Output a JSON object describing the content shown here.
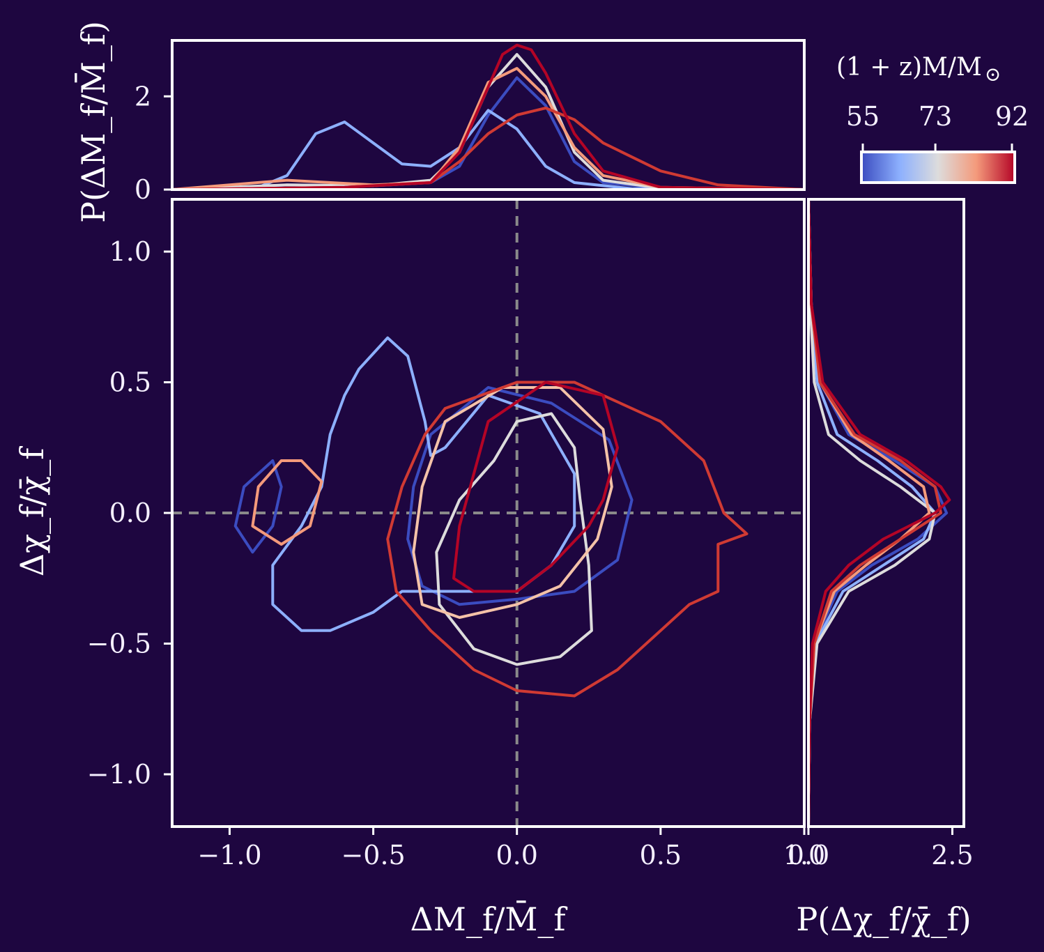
{
  "chart_data": {
    "type": "line",
    "subtype": "corner-plot with marginal distributions and 2D contours",
    "colorbar": {
      "title": "(1 + z)M/M",
      "title_symbol": "⊙",
      "tick_labels": [
        "55",
        "73",
        "92"
      ],
      "ticks": [
        55,
        73,
        92
      ],
      "range": [
        55,
        92
      ],
      "colormap": "coolwarm",
      "stops": [
        "#3b4cc0",
        "#8db0fe",
        "#dddcdc",
        "#f49a7b",
        "#b40426"
      ]
    },
    "main": {
      "xlabel": "ΔM_f/M̄_f",
      "ylabel": "Δχ_f/χ̄_f",
      "xlim": [
        -1.2,
        1.0
      ],
      "ylim": [
        -1.2,
        1.2
      ],
      "xticks": [
        -1.0,
        -0.5,
        0.0,
        0.5,
        1.0
      ],
      "xtick_labels": [
        "−1.0",
        "−0.5",
        "0.0",
        "0.5",
        "1.0"
      ],
      "yticks": [
        -1.0,
        -0.5,
        0.0,
        0.5,
        1.0
      ],
      "ytick_labels": [
        "−1.0",
        "−0.5",
        "0.0",
        "0.5",
        "1.0"
      ],
      "reference_lines": {
        "x": 0.0,
        "y": 0.0
      },
      "contours": [
        {
          "name": "M=55 outer",
          "color": "#3b4cc0",
          "points": [
            [
              -0.3,
              0.3
            ],
            [
              -0.1,
              0.48
            ],
            [
              0.12,
              0.42
            ],
            [
              0.32,
              0.28
            ],
            [
              0.4,
              0.05
            ],
            [
              0.35,
              -0.18
            ],
            [
              0.2,
              -0.3
            ],
            [
              0.0,
              -0.33
            ],
            [
              -0.2,
              -0.35
            ],
            [
              -0.33,
              -0.28
            ],
            [
              -0.38,
              -0.1
            ],
            [
              -0.36,
              0.1
            ],
            [
              -0.3,
              0.3
            ]
          ]
        },
        {
          "name": "M=55 secondary",
          "color": "#3b4cc0",
          "points": [
            [
              -0.85,
              0.2
            ],
            [
              -0.82,
              0.1
            ],
            [
              -0.85,
              -0.05
            ],
            [
              -0.92,
              -0.15
            ],
            [
              -0.98,
              -0.05
            ],
            [
              -0.95,
              0.1
            ],
            [
              -0.85,
              0.2
            ]
          ]
        },
        {
          "name": "M=62 outer",
          "color": "#8db0fe",
          "points": [
            [
              -0.55,
              0.55
            ],
            [
              -0.45,
              0.67
            ],
            [
              -0.38,
              0.6
            ],
            [
              -0.32,
              0.35
            ],
            [
              -0.3,
              0.22
            ],
            [
              -0.25,
              0.25
            ],
            [
              -0.1,
              0.45
            ],
            [
              0.08,
              0.38
            ],
            [
              0.2,
              0.15
            ],
            [
              0.2,
              -0.05
            ],
            [
              0.12,
              -0.2
            ],
            [
              0.0,
              -0.3
            ],
            [
              -0.15,
              -0.3
            ],
            [
              -0.3,
              -0.3
            ],
            [
              -0.4,
              -0.3
            ],
            [
              -0.5,
              -0.38
            ],
            [
              -0.65,
              -0.45
            ],
            [
              -0.75,
              -0.45
            ],
            [
              -0.85,
              -0.35
            ],
            [
              -0.85,
              -0.2
            ],
            [
              -0.75,
              -0.05
            ],
            [
              -0.68,
              0.1
            ],
            [
              -0.65,
              0.3
            ],
            [
              -0.6,
              0.45
            ],
            [
              -0.55,
              0.55
            ]
          ]
        },
        {
          "name": "M=73 outer",
          "color": "#dddcdc",
          "points": [
            [
              0.0,
              0.35
            ],
            [
              0.12,
              0.38
            ],
            [
              0.2,
              0.25
            ],
            [
              0.22,
              0.05
            ],
            [
              0.25,
              -0.2
            ],
            [
              0.26,
              -0.45
            ],
            [
              0.15,
              -0.55
            ],
            [
              0.0,
              -0.58
            ],
            [
              -0.15,
              -0.52
            ],
            [
              -0.27,
              -0.35
            ],
            [
              -0.28,
              -0.15
            ],
            [
              -0.2,
              0.05
            ],
            [
              -0.08,
              0.2
            ],
            [
              0.0,
              0.35
            ]
          ]
        },
        {
          "name": "M=80 outer",
          "color": "#f49a7b",
          "points": [
            [
              -0.75,
              0.2
            ],
            [
              -0.68,
              0.12
            ],
            [
              -0.72,
              -0.05
            ],
            [
              -0.82,
              -0.12
            ],
            [
              -0.92,
              -0.05
            ],
            [
              -0.9,
              0.1
            ],
            [
              -0.82,
              0.2
            ],
            [
              -0.75,
              0.2
            ]
          ]
        },
        {
          "name": "M=80 main",
          "color": "#f4c2a8",
          "points": [
            [
              -0.25,
              0.35
            ],
            [
              -0.05,
              0.48
            ],
            [
              0.15,
              0.48
            ],
            [
              0.3,
              0.32
            ],
            [
              0.33,
              0.1
            ],
            [
              0.28,
              -0.1
            ],
            [
              0.15,
              -0.28
            ],
            [
              0.0,
              -0.35
            ],
            [
              -0.2,
              -0.4
            ],
            [
              -0.33,
              -0.35
            ],
            [
              -0.36,
              -0.15
            ],
            [
              -0.33,
              0.1
            ],
            [
              -0.25,
              0.35
            ]
          ]
        },
        {
          "name": "M=86 outer",
          "color": "#d03a33",
          "points": [
            [
              -0.25,
              0.4
            ],
            [
              0.0,
              0.5
            ],
            [
              0.2,
              0.5
            ],
            [
              0.3,
              0.45
            ],
            [
              0.5,
              0.35
            ],
            [
              0.65,
              0.2
            ],
            [
              0.72,
              0.0
            ],
            [
              0.8,
              -0.08
            ],
            [
              0.7,
              -0.12
            ],
            [
              0.7,
              -0.3
            ],
            [
              0.6,
              -0.35
            ],
            [
              0.5,
              -0.45
            ],
            [
              0.35,
              -0.6
            ],
            [
              0.2,
              -0.7
            ],
            [
              0.0,
              -0.68
            ],
            [
              -0.15,
              -0.6
            ],
            [
              -0.3,
              -0.45
            ],
            [
              -0.42,
              -0.3
            ],
            [
              -0.45,
              -0.1
            ],
            [
              -0.4,
              0.1
            ],
            [
              -0.32,
              0.3
            ],
            [
              -0.25,
              0.4
            ]
          ]
        },
        {
          "name": "M=92 outer",
          "color": "#b40426",
          "points": [
            [
              -0.1,
              0.35
            ],
            [
              0.1,
              0.5
            ],
            [
              0.3,
              0.45
            ],
            [
              0.35,
              0.25
            ],
            [
              0.3,
              0.05
            ],
            [
              0.25,
              -0.05
            ],
            [
              0.12,
              -0.2
            ],
            [
              0.0,
              -0.3
            ],
            [
              -0.15,
              -0.3
            ],
            [
              -0.22,
              -0.25
            ],
            [
              -0.2,
              -0.05
            ],
            [
              -0.15,
              0.15
            ],
            [
              -0.1,
              0.35
            ]
          ]
        }
      ]
    },
    "top_marginal": {
      "ylabel": "P(ΔM_f/M̄_f)",
      "ylim": [
        0,
        3.2
      ],
      "yticks": [
        0,
        2
      ],
      "ytick_labels": [
        "0",
        "2"
      ],
      "series": [
        {
          "name": "55",
          "color": "#3b4cc0",
          "x": [
            -1.2,
            -0.9,
            -0.8,
            -0.5,
            -0.3,
            -0.2,
            -0.1,
            0.0,
            0.1,
            0.2,
            0.3,
            0.5,
            1.0
          ],
          "y": [
            0,
            0.05,
            0.1,
            0.08,
            0.15,
            0.5,
            1.6,
            2.4,
            1.8,
            0.6,
            0.15,
            0.03,
            0
          ]
        },
        {
          "name": "62",
          "color": "#8db0fe",
          "x": [
            -1.2,
            -0.9,
            -0.8,
            -0.7,
            -0.6,
            -0.5,
            -0.4,
            -0.3,
            -0.2,
            -0.1,
            0.0,
            0.1,
            0.2,
            0.4,
            1.0
          ],
          "y": [
            0,
            0.05,
            0.3,
            1.2,
            1.45,
            1.0,
            0.55,
            0.5,
            0.9,
            1.7,
            1.3,
            0.5,
            0.15,
            0.02,
            0
          ]
        },
        {
          "name": "73",
          "color": "#dddcdc",
          "x": [
            -1.2,
            -0.8,
            -0.5,
            -0.3,
            -0.2,
            -0.1,
            0.0,
            0.1,
            0.2,
            0.3,
            0.5,
            1.0
          ],
          "y": [
            0,
            0.1,
            0.08,
            0.2,
            0.8,
            2.2,
            2.9,
            2.2,
            0.8,
            0.2,
            0.03,
            0
          ]
        },
        {
          "name": "80",
          "color": "#f49a7b",
          "x": [
            -1.2,
            -0.8,
            -0.5,
            -0.3,
            -0.2,
            -0.1,
            0.0,
            0.1,
            0.2,
            0.3,
            0.5,
            1.0
          ],
          "y": [
            0,
            0.2,
            0.1,
            0.15,
            0.9,
            2.3,
            2.6,
            2.0,
            0.9,
            0.3,
            0.05,
            0
          ]
        },
        {
          "name": "86",
          "color": "#d03a33",
          "x": [
            -1.2,
            -0.6,
            -0.3,
            -0.2,
            -0.1,
            0.0,
            0.1,
            0.2,
            0.3,
            0.5,
            0.7,
            1.0
          ],
          "y": [
            0,
            0.05,
            0.15,
            0.6,
            1.2,
            1.6,
            1.75,
            1.5,
            1.0,
            0.4,
            0.1,
            0
          ]
        },
        {
          "name": "92",
          "color": "#b40426",
          "x": [
            -1.2,
            -0.6,
            -0.3,
            -0.2,
            -0.1,
            -0.05,
            0.0,
            0.05,
            0.1,
            0.2,
            0.3,
            0.5,
            1.0
          ],
          "y": [
            0,
            0.05,
            0.15,
            0.8,
            2.2,
            2.9,
            3.1,
            3.0,
            2.5,
            1.2,
            0.4,
            0.05,
            0
          ]
        }
      ]
    },
    "right_marginal": {
      "xlabel": "P(Δχ_f/χ̄_f)",
      "xlim": [
        0,
        2.7
      ],
      "xticks": [
        0.0,
        2.5
      ],
      "xtick_labels": [
        "0.0",
        "2.5"
      ],
      "series": [
        {
          "name": "55",
          "color": "#3b4cc0",
          "y": [
            1.2,
            0.8,
            0.5,
            0.3,
            0.2,
            0.1,
            0.0,
            -0.1,
            -0.2,
            -0.3,
            -0.5,
            -0.8,
            -1.2
          ],
          "x": [
            0,
            0.05,
            0.2,
            0.7,
            1.5,
            2.2,
            2.4,
            1.9,
            1.1,
            0.5,
            0.1,
            0.02,
            0
          ]
        },
        {
          "name": "62",
          "color": "#8db0fe",
          "y": [
            1.2,
            0.8,
            0.5,
            0.3,
            0.2,
            0.1,
            0.0,
            -0.1,
            -0.2,
            -0.3,
            -0.5,
            -0.8,
            -1.2
          ],
          "x": [
            0,
            0.05,
            0.15,
            0.5,
            1.2,
            1.8,
            2.2,
            2.0,
            1.3,
            0.6,
            0.12,
            0.02,
            0
          ]
        },
        {
          "name": "73",
          "color": "#dddcdc",
          "y": [
            1.2,
            0.8,
            0.5,
            0.3,
            0.2,
            0.1,
            0.0,
            -0.1,
            -0.2,
            -0.3,
            -0.5,
            -0.8,
            -1.2
          ],
          "x": [
            0,
            0.03,
            0.1,
            0.35,
            0.9,
            1.6,
            2.2,
            2.1,
            1.5,
            0.7,
            0.15,
            0.02,
            0
          ]
        },
        {
          "name": "80",
          "color": "#f49a7b",
          "y": [
            1.2,
            0.8,
            0.5,
            0.3,
            0.2,
            0.1,
            0.0,
            -0.1,
            -0.2,
            -0.3,
            -0.5,
            -0.8,
            -1.2
          ],
          "x": [
            0,
            0.05,
            0.2,
            0.75,
            1.4,
            2.0,
            2.1,
            1.6,
            1.0,
            0.45,
            0.1,
            0.02,
            0
          ]
        },
        {
          "name": "86",
          "color": "#d03a33",
          "y": [
            1.2,
            0.8,
            0.5,
            0.3,
            0.2,
            0.1,
            0.0,
            -0.1,
            -0.2,
            -0.3,
            -0.5,
            -0.8,
            -1.2
          ],
          "x": [
            0,
            0.05,
            0.2,
            0.8,
            1.6,
            2.2,
            2.3,
            1.6,
            0.9,
            0.4,
            0.1,
            0.02,
            0
          ]
        },
        {
          "name": "92",
          "color": "#b40426",
          "y": [
            1.2,
            0.8,
            0.5,
            0.3,
            0.2,
            0.1,
            0.05,
            0.0,
            -0.1,
            -0.2,
            -0.3,
            -0.5,
            -0.8,
            -1.2
          ],
          "x": [
            0,
            0.05,
            0.25,
            0.9,
            1.7,
            2.3,
            2.45,
            2.2,
            1.3,
            0.7,
            0.3,
            0.07,
            0.02,
            0
          ]
        }
      ]
    }
  }
}
